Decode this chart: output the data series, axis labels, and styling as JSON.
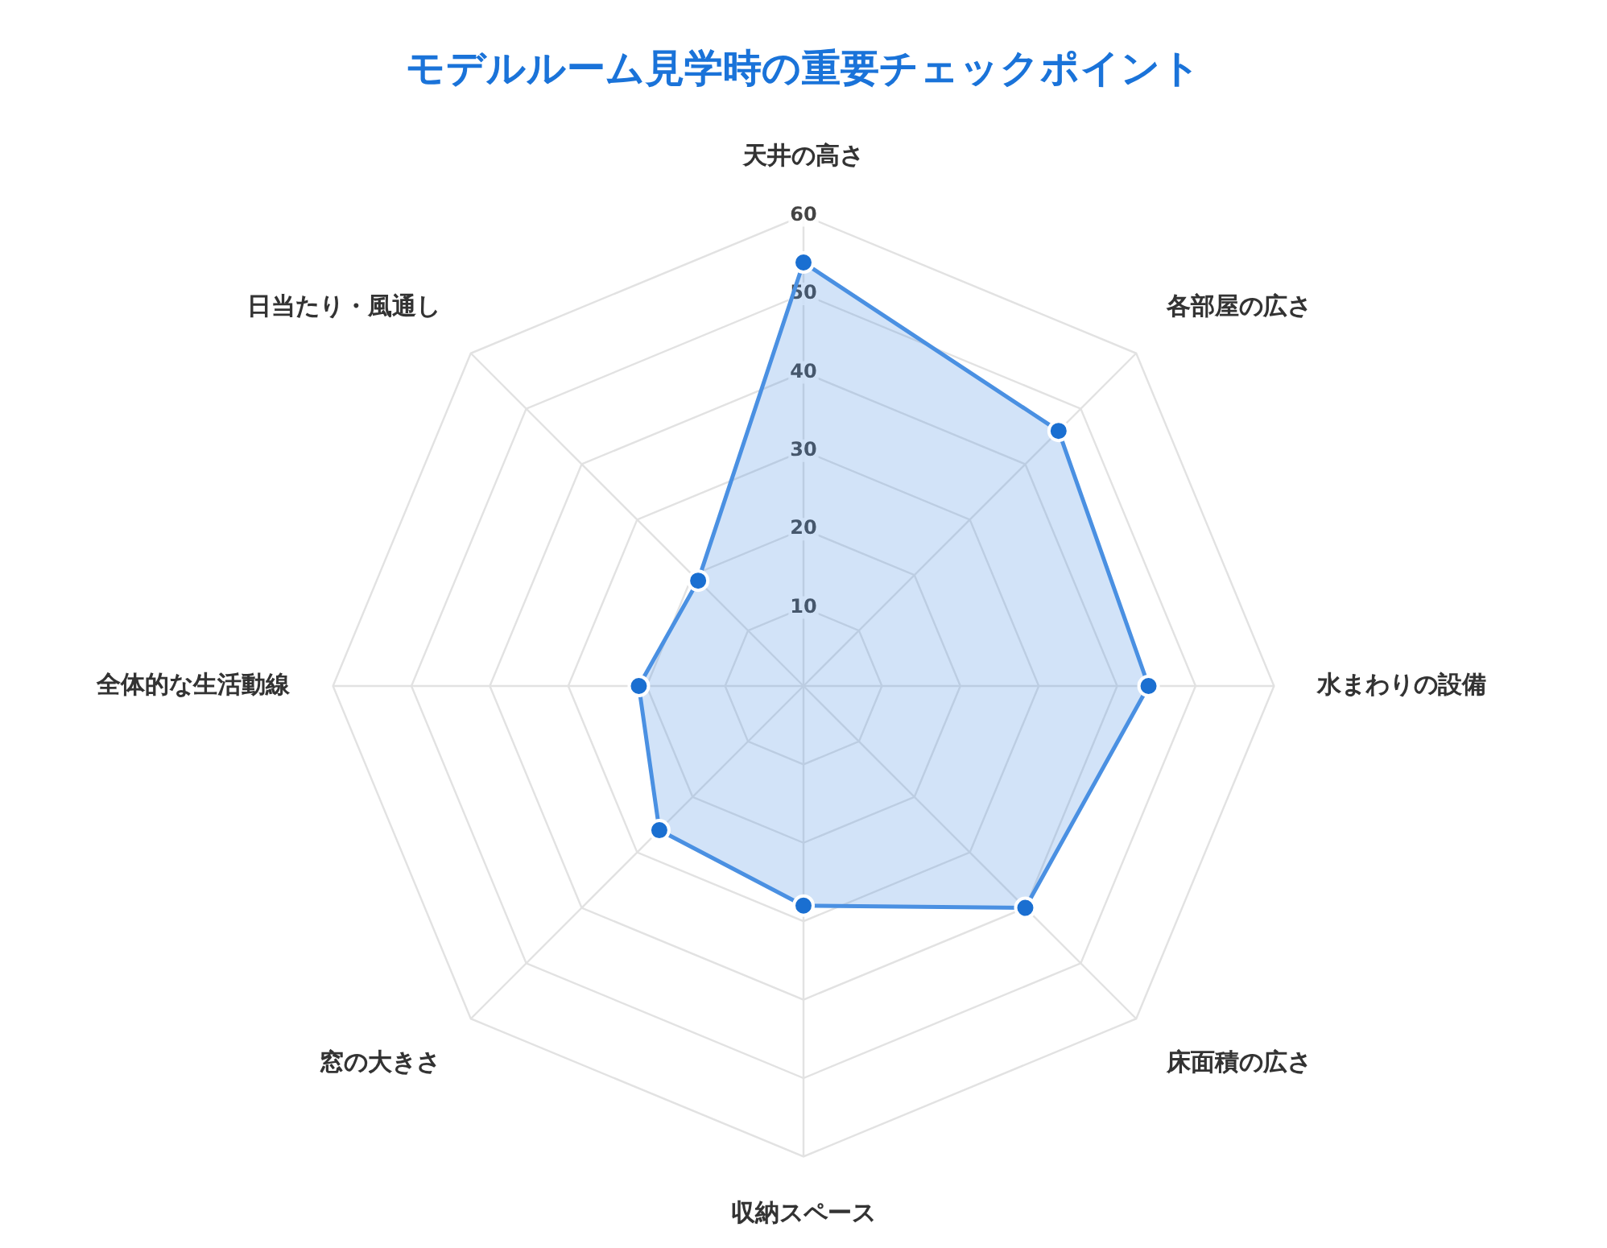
{
  "chart_data": {
    "type": "radar",
    "title": "モデルルーム見学時の重要チェックポイント",
    "categories": [
      "天井の高さ",
      "各部屋の広さ",
      "水まわりの設備",
      "床面積の広さ",
      "収納スペース",
      "窓の大きさ",
      "全体的な生活動線",
      "日当たり・風通し"
    ],
    "series": [
      {
        "color": "#4a90e2",
        "values": [
          54,
          46,
          44,
          40,
          28,
          26,
          21,
          19
        ]
      }
    ],
    "ylim": [
      0,
      60
    ],
    "yticks": [
      10,
      20,
      30,
      40,
      50,
      60
    ],
    "grid": true,
    "legend": false,
    "marker": "circle"
  }
}
